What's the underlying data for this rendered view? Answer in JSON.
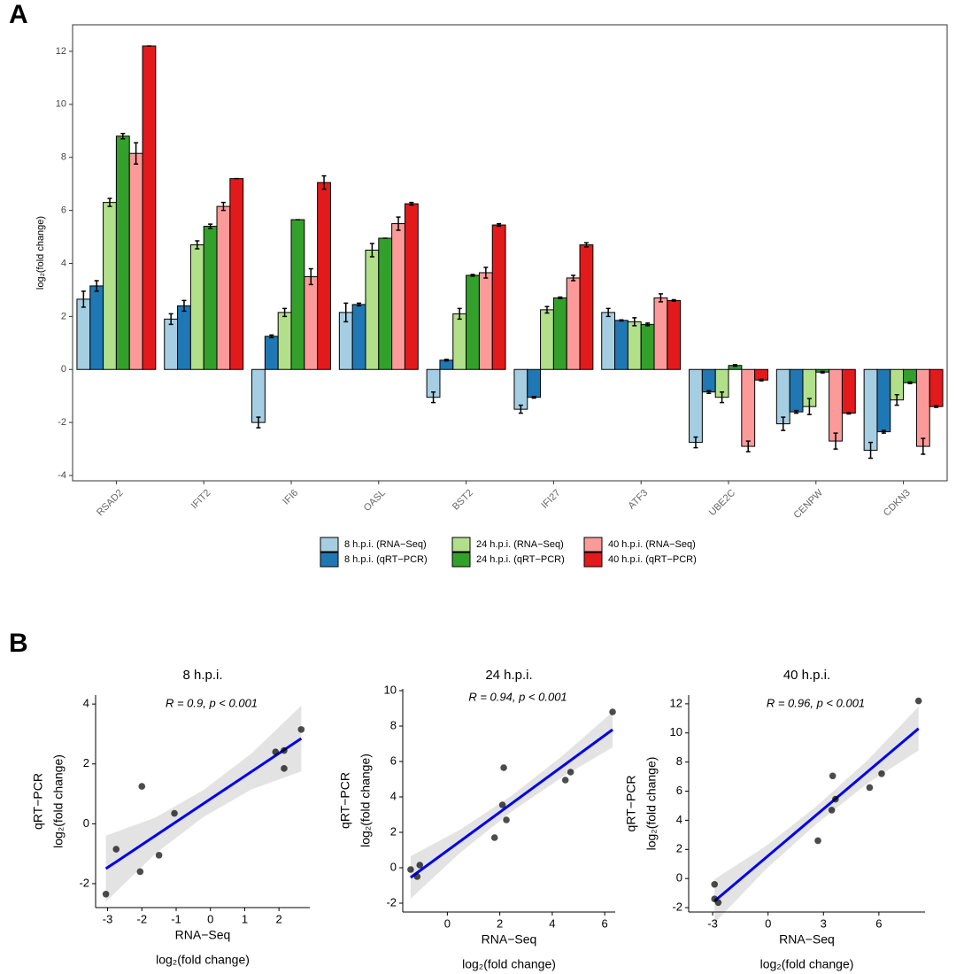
{
  "chart_data": [
    {
      "type": "bar",
      "panel": "A",
      "ylabel": "log₂(fold change)",
      "categories": [
        "RSAD2",
        "IFIT2",
        "IFI6",
        "OASL",
        "BST2",
        "IFI27",
        "ATF3",
        "UBE2C",
        "CENPW",
        "CDKN3"
      ],
      "series": [
        {
          "name": "8 h.p.i. (RNA−Seq)",
          "color": "#a6cee3",
          "values": [
            2.65,
            1.9,
            -2.0,
            2.15,
            -1.05,
            -1.5,
            2.15,
            -2.75,
            -2.05,
            -3.05
          ],
          "errors": [
            0.3,
            0.2,
            0.2,
            0.35,
            0.2,
            0.15,
            0.15,
            0.2,
            0.25,
            0.3
          ]
        },
        {
          "name": "8 h.p.i. (qRT−PCR)",
          "color": "#1f78b4",
          "values": [
            3.15,
            2.4,
            1.25,
            2.45,
            0.35,
            -1.05,
            1.85,
            -0.85,
            -1.6,
            -2.35
          ],
          "errors": [
            0.2,
            0.2,
            0.05,
            0.05,
            0.03,
            0.03,
            0.02,
            0.05,
            0.05,
            0.05
          ]
        },
        {
          "name": "24 h.p.i. (RNA−Seq)",
          "color": "#b2df8a",
          "values": [
            6.3,
            4.7,
            2.15,
            4.5,
            2.1,
            2.25,
            1.8,
            -1.05,
            -1.4,
            -1.15
          ],
          "errors": [
            0.15,
            0.15,
            0.15,
            0.25,
            0.2,
            0.12,
            0.15,
            0.2,
            0.3,
            0.2
          ]
        },
        {
          "name": "24 h.p.i. (qRT−PCR)",
          "color": "#33a02c",
          "values": [
            8.8,
            5.4,
            5.65,
            4.95,
            3.55,
            2.7,
            1.7,
            0.15,
            -0.1,
            -0.5
          ],
          "errors": [
            0.1,
            0.08,
            0,
            0,
            0.03,
            0.03,
            0.05,
            0.03,
            0.03,
            0.03
          ]
        },
        {
          "name": "40 h.p.i. (RNA−Seq)",
          "color": "#fb9a99",
          "values": [
            8.15,
            6.15,
            3.5,
            5.5,
            3.65,
            3.45,
            2.7,
            -2.9,
            -2.7,
            -2.9
          ],
          "errors": [
            0.4,
            0.15,
            0.3,
            0.25,
            0.2,
            0.1,
            0.15,
            0.2,
            0.3,
            0.3
          ]
        },
        {
          "name": "40 h.p.i. (qRT−PCR)",
          "color": "#e31a1c",
          "values": [
            12.2,
            7.2,
            7.05,
            6.25,
            5.45,
            4.7,
            2.6,
            -0.4,
            -1.65,
            -1.4
          ],
          "errors": [
            0,
            0,
            0.25,
            0.05,
            0.05,
            0.08,
            0.03,
            0.03,
            0.03,
            0.03
          ]
        }
      ],
      "ylim": [
        -4.2,
        13
      ],
      "yticks": [
        -4,
        -2,
        0,
        2,
        4,
        6,
        8,
        10,
        12
      ],
      "legend": "bottom"
    },
    {
      "type": "scatter",
      "panel": "B",
      "title": "8 h.p.i.",
      "annotation": "R = 0.9, p < 0.001",
      "xlabel": [
        "RNA−Seq",
        "log₂(fold change)"
      ],
      "ylabel": [
        "qRT−PCR",
        "log₂(fold change)"
      ],
      "x": [
        2.65,
        1.9,
        -2.0,
        2.15,
        -1.05,
        -1.5,
        2.15,
        -2.75,
        -2.05,
        -3.05
      ],
      "y": [
        3.15,
        2.4,
        1.25,
        2.45,
        0.35,
        -1.05,
        1.85,
        -0.85,
        -1.6,
        -2.35
      ],
      "color": "#000000",
      "xlim": [
        -3.35,
        2.9
      ],
      "ylim": [
        -2.8,
        4.3
      ],
      "xticks": [
        -3,
        -2,
        -1,
        0,
        1,
        2
      ],
      "yticks": [
        -2,
        0,
        2,
        4
      ],
      "fit": {
        "color": "#0000ee",
        "x": [
          -3.05,
          2.65
        ],
        "y": [
          -1.5,
          2.85
        ]
      },
      "band": {
        "x": [
          -3.05,
          -1.6,
          -0.2,
          1.2,
          2.65
        ],
        "lower": [
          -2.6,
          -0.99,
          0.23,
          1.15,
          1.75
        ],
        "upper": [
          -0.4,
          0.21,
          1.13,
          2.35,
          3.95
        ]
      }
    },
    {
      "type": "scatter",
      "title": "24 h.p.i.",
      "annotation": "R = 0.94, p < 0.001",
      "xlabel": [
        "RNA−Seq",
        "log₂(fold change)"
      ],
      "ylabel": [
        "qRT−PCR",
        "log₂(fold change)"
      ],
      "x": [
        6.3,
        4.7,
        2.15,
        4.5,
        2.1,
        2.25,
        1.8,
        -1.05,
        -1.4,
        -1.15
      ],
      "y": [
        8.8,
        5.4,
        5.65,
        4.95,
        3.55,
        2.7,
        1.7,
        0.15,
        -0.1,
        -0.5
      ],
      "color": "#000000",
      "xlim": [
        -1.7,
        6.4
      ],
      "ylim": [
        -2.5,
        10.1
      ],
      "xticks": [
        0,
        2,
        4,
        6
      ],
      "yticks": [
        -2,
        0,
        2,
        4,
        6,
        8,
        10
      ],
      "fit": {
        "color": "#0000ee",
        "x": [
          -1.4,
          6.3
        ],
        "y": [
          -0.55,
          7.8
        ]
      },
      "band": {
        "x": [
          -1.4,
          0.5,
          2.45,
          4.4,
          6.3
        ],
        "lower": [
          -1.75,
          0.86,
          3.17,
          5.14,
          6.8
        ],
        "upper": [
          0.65,
          2.16,
          4.07,
          6.34,
          8.8
        ]
      }
    },
    {
      "type": "scatter",
      "title": "40 h.p.i.",
      "annotation": "R = 0.96, p < 0.001",
      "xlabel": [
        "RNA−Seq",
        "log₂(fold change)"
      ],
      "ylabel": [
        "qRT−PCR",
        "log₂(fold change)"
      ],
      "x": [
        8.15,
        6.15,
        3.5,
        5.5,
        3.65,
        3.45,
        2.7,
        -2.9,
        -2.7,
        -2.9
      ],
      "y": [
        12.2,
        7.2,
        7.05,
        6.25,
        5.45,
        4.7,
        2.6,
        -0.4,
        -1.65,
        -1.4
      ],
      "color": "#000000",
      "xlim": [
        -4.3,
        8.5
      ],
      "ylim": [
        -2.3,
        12.6
      ],
      "xticks": [
        -3,
        0,
        3,
        6
      ],
      "yticks": [
        -2,
        0,
        2,
        4,
        6,
        8,
        10,
        12
      ],
      "fit": {
        "color": "#0000ee",
        "x": [
          -2.9,
          8.15
        ],
        "y": [
          -1.55,
          10.3
        ]
      },
      "band": {
        "x": [
          -2.9,
          -0.14,
          2.63,
          5.39,
          8.15
        ],
        "lower": [
          -3.05,
          0.61,
          3.77,
          6.53,
          8.8
        ],
        "upper": [
          -0.05,
          2.21,
          4.97,
          8.13,
          11.8
        ]
      }
    }
  ]
}
